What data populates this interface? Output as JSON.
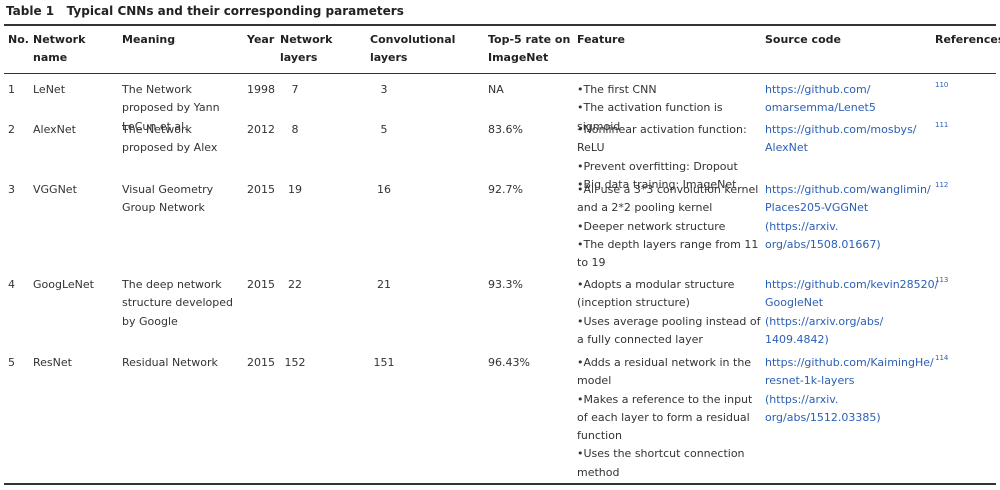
{
  "title": {
    "label": "Table 1",
    "text": "Typical CNNs and their corresponding parameters"
  },
  "table": {
    "columns": [
      "No.",
      "Network name",
      "Meaning",
      "Year",
      "Network layers",
      "Convolutional layers",
      "Top-5 rate on ImageNet",
      "Feature",
      "Source code",
      "References"
    ],
    "rows": [
      {
        "no": "1",
        "name": "LeNet",
        "meaning": "The Network proposed by Yann LeCun et al.",
        "year": "1998",
        "layers": "7",
        "conv": "3",
        "top5": "NA",
        "features": [
          "•The first CNN",
          "•The activation function is sigmoid"
        ],
        "source": "https://github.com/ omarsemma/Lenet5",
        "ref": "110"
      },
      {
        "no": "2",
        "name": "AlexNet",
        "meaning": "The Network proposed by Alex",
        "year": "2012",
        "layers": "8",
        "conv": "5",
        "top5": "83.6%",
        "features": [
          "•Nonlinear activation function: ReLU",
          "•Prevent overfitting: Dropout",
          "•Big data training: ImageNet"
        ],
        "source": "https://github.com/mosbys/ AlexNet",
        "ref": "111"
      },
      {
        "no": "3",
        "name": "VGGNet",
        "meaning": "Visual Geometry Group Network",
        "year": "2015",
        "layers": "19",
        "conv": "16",
        "top5": "92.7%",
        "features": [
          "•All use a 3*3 convolution kernel and a 2*2 pooling kernel",
          "•Deeper network structure",
          "•The depth layers range from 11 to 19"
        ],
        "source": "https://github.com/wanglimin/ Places205-VGGNet (https://arxiv. org/abs/1508.01667)",
        "ref": "112"
      },
      {
        "no": "4",
        "name": "GoogLeNet",
        "meaning": "The deep network structure developed by Google",
        "year": "2015",
        "layers": "22",
        "conv": "21",
        "top5": "93.3%",
        "features": [
          "•Adopts a modular structure (inception structure)",
          "•Uses average pooling instead of a fully connected layer"
        ],
        "source": "https://github.com/kevin28520/ GoogleNet (https://arxiv.org/abs/ 1409.4842)",
        "ref": "113"
      },
      {
        "no": "5",
        "name": "ResNet",
        "meaning": "Residual Network",
        "year": "2015",
        "layers": "152",
        "conv": "151",
        "top5": "96.43%",
        "features": [
          "•Adds a residual network in the model",
          "•Makes a reference to the input of each layer to form a residual function",
          "•Uses the shortcut connection method"
        ],
        "source": "https://github.com/KaimingHe/ resnet-1k-layers (https://arxiv. org/abs/1512.03385)",
        "ref": "114"
      }
    ]
  }
}
